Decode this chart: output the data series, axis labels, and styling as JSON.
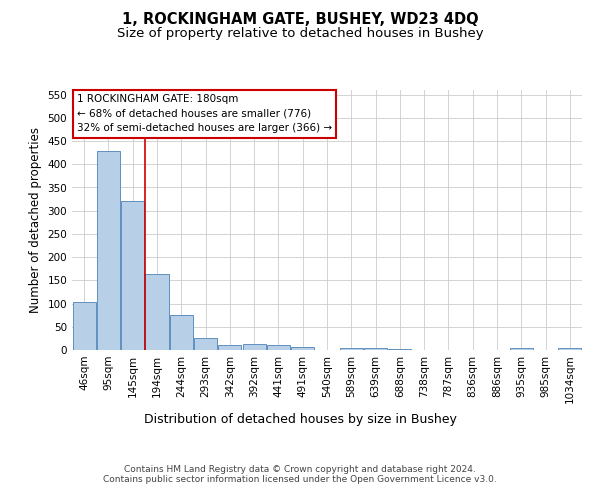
{
  "title": "1, ROCKINGHAM GATE, BUSHEY, WD23 4DQ",
  "subtitle": "Size of property relative to detached houses in Bushey",
  "xlabel": "Distribution of detached houses by size in Bushey",
  "ylabel": "Number of detached properties",
  "footer_line1": "Contains HM Land Registry data © Crown copyright and database right 2024.",
  "footer_line2": "Contains public sector information licensed under the Open Government Licence v3.0.",
  "categories": [
    "46sqm",
    "95sqm",
    "145sqm",
    "194sqm",
    "244sqm",
    "293sqm",
    "342sqm",
    "392sqm",
    "441sqm",
    "491sqm",
    "540sqm",
    "589sqm",
    "639sqm",
    "688sqm",
    "738sqm",
    "787sqm",
    "836sqm",
    "886sqm",
    "935sqm",
    "985sqm",
    "1034sqm"
  ],
  "values": [
    103,
    428,
    320,
    163,
    76,
    26,
    11,
    12,
    11,
    6,
    0,
    5,
    5,
    2,
    0,
    0,
    0,
    0,
    5,
    0,
    4
  ],
  "bar_color": "#b8cfe8",
  "bar_edge_color": "#6090c0",
  "vline_color": "#cc0000",
  "vline_x": 2.5,
  "annotation_box_text": "1 ROCKINGHAM GATE: 180sqm\n← 68% of detached houses are smaller (776)\n32% of semi-detached houses are larger (366) →",
  "annotation_box_edge_color": "#cc0000",
  "ylim": [
    0,
    560
  ],
  "yticks": [
    0,
    50,
    100,
    150,
    200,
    250,
    300,
    350,
    400,
    450,
    500,
    550
  ],
  "background_color": "#ffffff",
  "grid_color": "#cccccc",
  "title_fontsize": 10.5,
  "subtitle_fontsize": 9.5,
  "ylabel_fontsize": 8.5,
  "xlabel_fontsize": 9,
  "tick_fontsize": 7.5,
  "annotation_fontsize": 7.5,
  "footer_fontsize": 6.5
}
